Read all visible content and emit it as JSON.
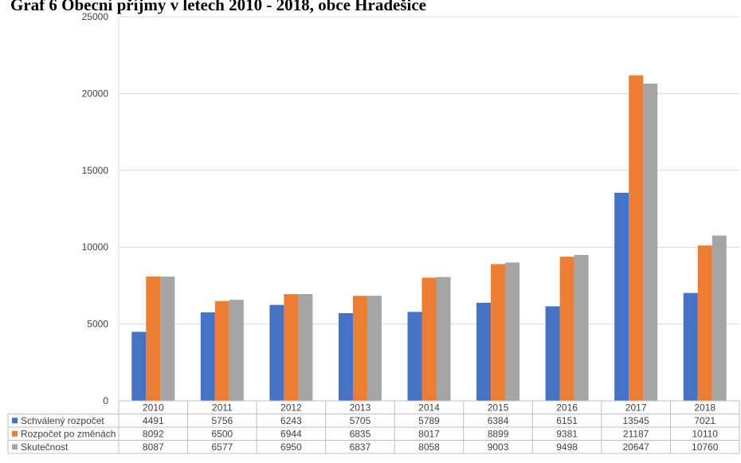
{
  "page": {
    "title": "Graf 6 Obecní příjmy v letech 2010 - 2018, obce Hradešice"
  },
  "chart_data": {
    "type": "bar",
    "title": "Graf 6 Obecní příjmy v letech 2010 - 2018, obce Hradešice",
    "xlabel": "",
    "ylabel": "",
    "ylim": [
      0,
      25000
    ],
    "yticks": [
      0,
      5000,
      10000,
      15000,
      20000,
      25000
    ],
    "grid": true,
    "legend_placement": "data-table-left",
    "categories": [
      "2010",
      "2011",
      "2012",
      "2013",
      "2014",
      "2015",
      "2016",
      "2017",
      "2018"
    ],
    "series": [
      {
        "name": "Schválený rozpočet",
        "color": "#4472C4",
        "values": [
          4491,
          5756,
          6243,
          5705,
          5789,
          6384,
          6151,
          13545,
          7021
        ]
      },
      {
        "name": "Rozpočet po změnách",
        "color": "#ED7D31",
        "values": [
          8092,
          6500,
          6944,
          6835,
          8017,
          8899,
          9381,
          21187,
          10110
        ]
      },
      {
        "name": "Skutečnost",
        "color": "#A5A5A5",
        "values": [
          8087,
          6577,
          6950,
          6837,
          8058,
          9003,
          9498,
          20647,
          10760
        ]
      }
    ]
  }
}
